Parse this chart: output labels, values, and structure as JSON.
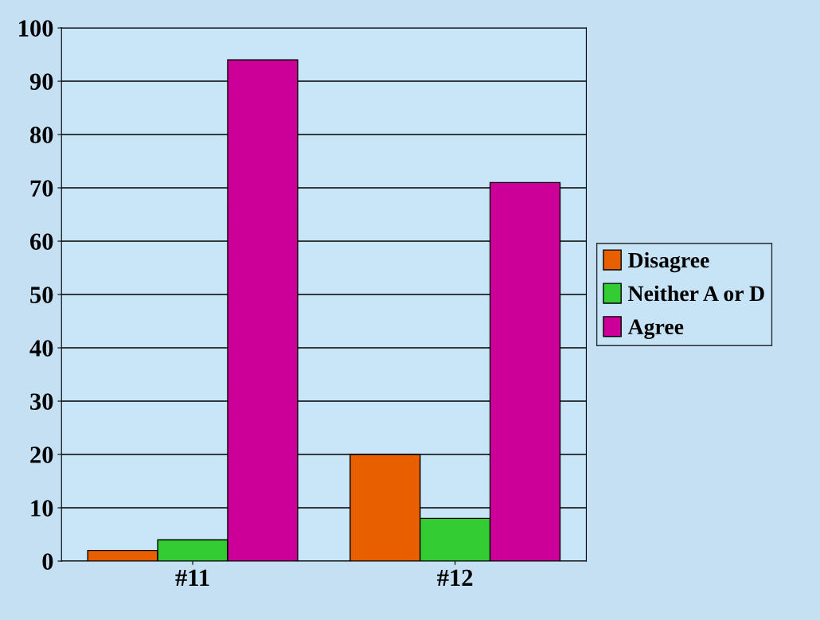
{
  "chart_data": {
    "type": "bar",
    "categories": [
      "#11",
      "#12"
    ],
    "series": [
      {
        "name": "Disagree",
        "color": "#e85f00",
        "values": [
          2,
          20
        ]
      },
      {
        "name": "Neither A or D",
        "color": "#33cc33",
        "values": [
          4,
          8
        ]
      },
      {
        "name": "Agree",
        "color": "#cc0099",
        "values": [
          94,
          71
        ]
      }
    ],
    "ylim": [
      0,
      100
    ],
    "yticks": [
      0,
      10,
      20,
      30,
      40,
      50,
      60,
      70,
      80,
      90,
      100
    ],
    "grid": "y",
    "legend": "right"
  }
}
